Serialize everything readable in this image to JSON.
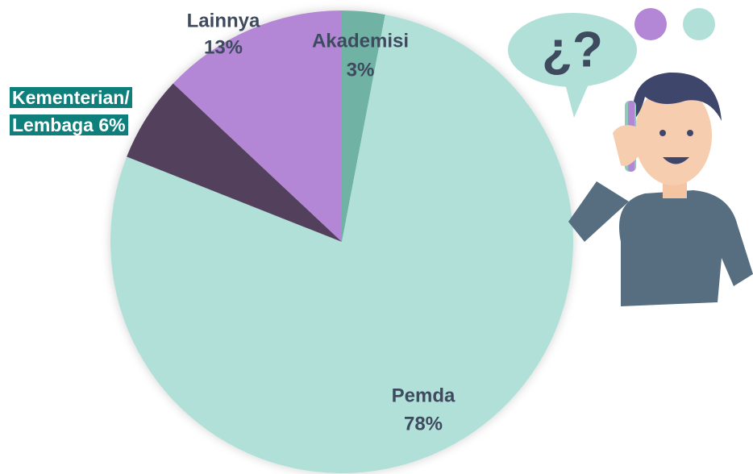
{
  "chart_data": {
    "type": "pie",
    "categories": [
      "Akademisi",
      "Pemda",
      "Kementerian/ Lembaga",
      "Lainnya"
    ],
    "values": [
      3,
      78,
      6,
      13
    ],
    "value_labels": [
      "3%",
      "78%",
      "6%",
      "13%"
    ],
    "colors": [
      "#6fb3a5",
      "#b0e0d8",
      "#523f5c",
      "#b387d6"
    ]
  },
  "illustration": {
    "bubble_text": "¿?"
  }
}
